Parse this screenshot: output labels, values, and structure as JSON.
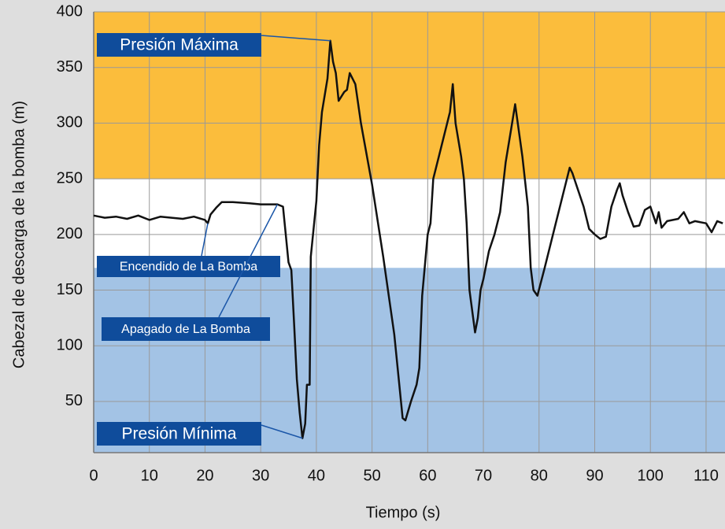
{
  "chart_data": {
    "type": "line",
    "xlabel": "Tiempo (s)",
    "ylabel": "Cabezal de descarga de la bomba (m)",
    "xlim": [
      0,
      113.4
    ],
    "ylim": [
      4,
      400
    ],
    "xticks": [
      0,
      10,
      20,
      30,
      40,
      50,
      60,
      70,
      80,
      90,
      100,
      110
    ],
    "yticks": [
      50,
      100,
      150,
      200,
      250,
      300,
      350,
      400
    ],
    "grid": true,
    "bands": [
      {
        "from": 250,
        "to": 400,
        "color": "#fbbd3c"
      },
      {
        "from": 4,
        "to": 170,
        "color": "#a3c3e5"
      }
    ],
    "color": "#111111",
    "x": [
      0,
      2,
      4,
      6,
      8,
      10,
      12,
      14,
      16,
      18,
      20,
      20.5,
      21,
      22,
      23,
      25,
      28,
      30,
      33,
      34,
      34.5,
      35,
      35.5,
      36,
      36.5,
      37,
      37.5,
      38,
      38.3,
      38.8,
      39,
      40,
      40.5,
      41,
      42,
      42.5,
      43,
      43.5,
      44,
      45,
      45.5,
      46,
      47,
      48,
      50,
      52,
      54,
      55.5,
      56,
      57,
      58,
      58.5,
      59,
      60,
      60.5,
      61,
      62,
      64,
      64.5,
      65,
      66,
      66.5,
      67,
      67.5,
      68.5,
      69,
      69.5,
      70,
      71,
      72,
      73,
      74,
      75,
      75.7,
      77,
      78,
      78.5,
      79,
      79.7,
      81,
      83,
      84.5,
      85.5,
      86,
      87,
      88,
      89,
      90,
      91,
      92,
      93,
      94,
      94.5,
      95,
      96,
      97,
      98,
      99,
      100,
      101,
      101.5,
      102,
      103,
      105,
      106,
      107,
      108,
      110,
      111,
      112,
      113
    ],
    "values": [
      217,
      215,
      216,
      214,
      217,
      213,
      216,
      215,
      214,
      216,
      213,
      210,
      218,
      224,
      229,
      229,
      228,
      227,
      227,
      225,
      200,
      175,
      168,
      120,
      70,
      40,
      17,
      30,
      65,
      65,
      180,
      230,
      280,
      310,
      340,
      374,
      355,
      345,
      320,
      328,
      330,
      345,
      335,
      300,
      245,
      180,
      110,
      35,
      33,
      50,
      65,
      80,
      145,
      200,
      210,
      250,
      270,
      310,
      335,
      300,
      270,
      250,
      210,
      150,
      112,
      125,
      150,
      160,
      185,
      200,
      220,
      265,
      295,
      317,
      270,
      225,
      170,
      150,
      145,
      170,
      210,
      240,
      260,
      255,
      240,
      225,
      205,
      200,
      196,
      198,
      225,
      240,
      246,
      235,
      220,
      207,
      208,
      222,
      225,
      210,
      220,
      206,
      212,
      214,
      220,
      210,
      212,
      210,
      202,
      212,
      210
    ],
    "annotations": [
      {
        "text": "Presión Máxima",
        "x": 42.5,
        "y": 374
      },
      {
        "text": "Encendido de La Bomba",
        "x": 20.5,
        "y": 210
      },
      {
        "text": "Apagado de La Bomba",
        "x": 33,
        "y": 227
      },
      {
        "text": "Presión Mínima",
        "x": 37.5,
        "y": 17
      }
    ]
  }
}
